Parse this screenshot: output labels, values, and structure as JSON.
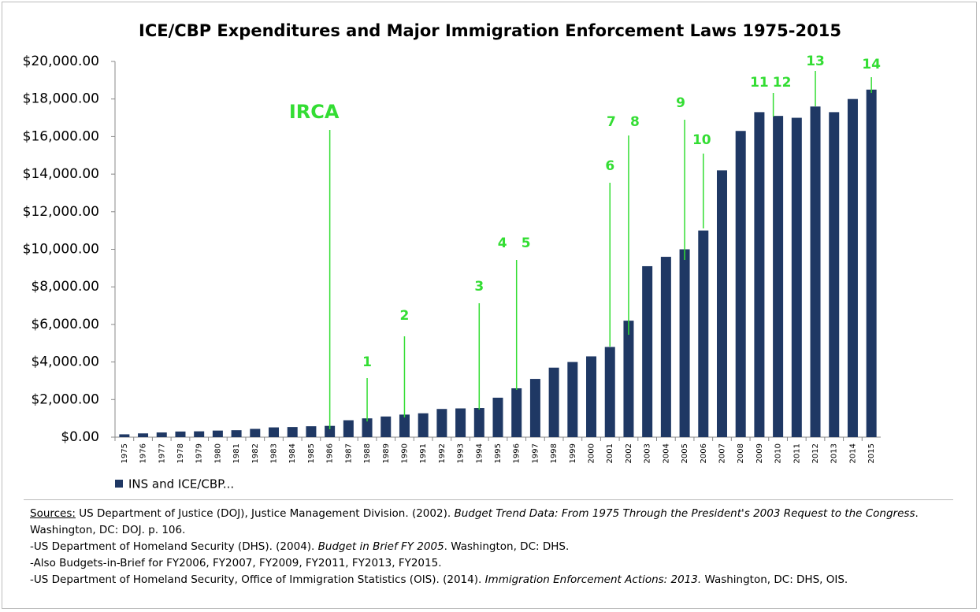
{
  "chart_data": {
    "type": "bar",
    "title": "ICE/CBP Expenditures and Major Immigration Enforcement Laws 1975-2015",
    "categories": [
      "1975",
      "1976",
      "1977",
      "1978",
      "1979",
      "1980",
      "1981",
      "1982",
      "1983",
      "1984",
      "1985",
      "1986",
      "1987",
      "1988",
      "1989",
      "1990",
      "1991",
      "1992",
      "1993",
      "1994",
      "1995",
      "1996",
      "1997",
      "1998",
      "1999",
      "2000",
      "2001",
      "2002",
      "2003",
      "2004",
      "2005",
      "2006",
      "2007",
      "2008",
      "2009",
      "2010",
      "2011",
      "2012",
      "2013",
      "2014",
      "2015"
    ],
    "series": [
      {
        "name": "INS and ICE/CBP...",
        "color": "#1f3864",
        "values": [
          150,
          200,
          250,
          300,
          310,
          350,
          370,
          440,
          520,
          540,
          580,
          600,
          900,
          1000,
          1100,
          1200,
          1270,
          1500,
          1530,
          1550,
          2100,
          2600,
          3100,
          3700,
          4000,
          4300,
          4800,
          6200,
          9100,
          9600,
          10000,
          11000,
          14200,
          16300,
          17300,
          17100,
          17000,
          17600,
          17300,
          18000,
          18500
        ]
      }
    ],
    "ylim": [
      0,
      20000
    ],
    "yticks": [
      {
        "value": 0,
        "label": "$0.00"
      },
      {
        "value": 2000,
        "label": "$2,000.00"
      },
      {
        "value": 4000,
        "label": "$4,000.00"
      },
      {
        "value": 6000,
        "label": "$6,000.00"
      },
      {
        "value": 8000,
        "label": "$8,000.00"
      },
      {
        "value": 10000,
        "label": "$10,000.00"
      },
      {
        "value": 12000,
        "label": "$12,000.00"
      },
      {
        "value": 14000,
        "label": "$14,000.00"
      },
      {
        "value": 16000,
        "label": "$16,000.00"
      },
      {
        "value": 18000,
        "label": "$18,000.00"
      },
      {
        "value": 20000,
        "label": "$20,000.00"
      }
    ],
    "legend": "bottom-left",
    "annotation_color": "#33dd33",
    "annotations": [
      {
        "text": "IRCA",
        "category": "1986"
      },
      {
        "text": "1",
        "category": "1988"
      },
      {
        "text": "2",
        "category": "1990"
      },
      {
        "text": "3",
        "category": "1994"
      },
      {
        "text": "4",
        "category": "1996"
      },
      {
        "text": "5",
        "category": "1996"
      },
      {
        "text": "6",
        "category": "2001"
      },
      {
        "text": "7",
        "category": "2002"
      },
      {
        "text": "8",
        "category": "2002"
      },
      {
        "text": "9",
        "category": "2005"
      },
      {
        "text": "10",
        "category": "2006"
      },
      {
        "text": "11",
        "category": "2009"
      },
      {
        "text": "12",
        "category": "2010"
      },
      {
        "text": "13",
        "category": "2012"
      },
      {
        "text": "14",
        "category": "2015"
      }
    ]
  },
  "sources": [
    [
      {
        "text": "Sources:",
        "underline": true
      },
      {
        "text": " US Department of Justice (DOJ), Justice Management Division. (2002). "
      },
      {
        "text": "Budget Trend Data: From 1975 Through the President's 2003 Request to the Congress",
        "italic": true
      },
      {
        "text": ". Washington, DC: DOJ. p. 106."
      }
    ],
    [
      {
        "text": "-US Department of Homeland Security (DHS). (2004). "
      },
      {
        "text": "Budget in Brief FY 2005",
        "italic": true
      },
      {
        "text": ". Washington, DC: DHS."
      }
    ],
    [
      {
        "text": "-Also Budgets-in-Brief for FY2006, FY2007, FY2009, FY2011, FY2013, FY2015."
      }
    ],
    [
      {
        "text": "-US Department of Homeland Security, Office of Immigration Statistics (OIS). (2014). "
      },
      {
        "text": "Immigration Enforcement Actions: 2013.",
        "italic": true
      },
      {
        "text": " Washington, DC: DHS, OIS."
      }
    ]
  ]
}
